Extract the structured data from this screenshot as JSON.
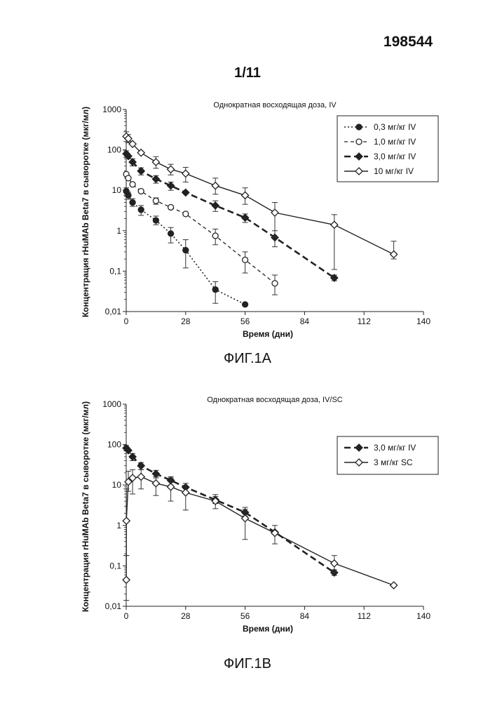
{
  "page": {
    "doc_number": "198544",
    "sheet_number": "1/11"
  },
  "figures": [
    {
      "label": "ФИГ.1A"
    },
    {
      "label": "ФИГ.1B"
    }
  ],
  "chart_data": [
    {
      "type": "line",
      "title": "Однократная восходящая доза, IV",
      "xlabel": "Время (дни)",
      "ylabel": "Концентрация rHuMAb Beta7 в сыворотке (мкг/мл)",
      "xlim": [
        0,
        140
      ],
      "xticks": [
        0,
        28,
        56,
        84,
        112,
        140
      ],
      "xtick_labels": [
        "0",
        "28",
        "56",
        "84",
        "112",
        "140"
      ],
      "ylim": [
        0.01,
        1000
      ],
      "yscale": "log",
      "yticks": [
        0.01,
        0.1,
        1,
        10,
        100,
        1000
      ],
      "ytick_labels": [
        "0,01",
        "0,1",
        "1",
        "10",
        "100",
        "1000"
      ],
      "grid": false,
      "legend_position": "top-right",
      "series": [
        {
          "name": "0,3  мг/кг  IV",
          "marker": "filled-circle",
          "line_style": "dotted",
          "points": [
            {
              "x": 0.04,
              "y": 9.5
            },
            {
              "x": 1,
              "y": 7.5
            },
            {
              "x": 3,
              "y": 5.0
            },
            {
              "x": 7,
              "y": 3.3
            },
            {
              "x": 14,
              "y": 1.8
            },
            {
              "x": 21,
              "y": 0.85
            },
            {
              "x": 28,
              "y": 0.33
            },
            {
              "x": 42,
              "y": 0.035
            },
            {
              "x": 56,
              "y": 0.015
            }
          ],
          "error_bars": [
            {
              "x": 0.04,
              "lower": 7.5,
              "upper": 11.5
            },
            {
              "x": 1,
              "lower": 6.0,
              "upper": 9.0
            },
            {
              "x": 3,
              "lower": 4.0,
              "upper": 6.2
            },
            {
              "x": 7,
              "lower": 2.4,
              "upper": 4.2
            },
            {
              "x": 14,
              "lower": 1.4,
              "upper": 2.3
            },
            {
              "x": 21,
              "lower": 0.5,
              "upper": 1.2
            },
            {
              "x": 28,
              "lower": 0.12,
              "upper": 0.6
            },
            {
              "x": 42,
              "lower": 0.016,
              "upper": 0.055
            }
          ]
        },
        {
          "name": "1,0  мг/кг  IV",
          "marker": "open-circle",
          "line_style": "dashed",
          "points": [
            {
              "x": 0.04,
              "y": 25
            },
            {
              "x": 1,
              "y": 20
            },
            {
              "x": 3,
              "y": 14
            },
            {
              "x": 7,
              "y": 9.5
            },
            {
              "x": 14,
              "y": 5.5
            },
            {
              "x": 21,
              "y": 3.8
            },
            {
              "x": 28,
              "y": 2.6
            },
            {
              "x": 42,
              "y": 0.75
            },
            {
              "x": 56,
              "y": 0.19
            },
            {
              "x": 70,
              "y": 0.05
            }
          ],
          "error_bars": [
            {
              "x": 14,
              "lower": 4.5,
              "upper": 6.5
            },
            {
              "x": 42,
              "lower": 0.45,
              "upper": 1.1
            },
            {
              "x": 56,
              "lower": 0.09,
              "upper": 0.3
            },
            {
              "x": 70,
              "lower": 0.026,
              "upper": 0.08
            }
          ]
        },
        {
          "name": "3,0  мг/кг  IV",
          "marker": "filled-diamond",
          "line_style": "bold-dashed",
          "points": [
            {
              "x": 0.04,
              "y": 80
            },
            {
              "x": 1,
              "y": 70
            },
            {
              "x": 3,
              "y": 50
            },
            {
              "x": 7,
              "y": 30
            },
            {
              "x": 14,
              "y": 19
            },
            {
              "x": 21,
              "y": 13
            },
            {
              "x": 28,
              "y": 8.8
            },
            {
              "x": 42,
              "y": 4.2
            },
            {
              "x": 56,
              "y": 2.1
            },
            {
              "x": 70,
              "y": 0.68
            },
            {
              "x": 98,
              "y": 0.068
            }
          ],
          "error_bars": [
            {
              "x": 0.04,
              "lower": 65,
              "upper": 95
            },
            {
              "x": 3,
              "lower": 40,
              "upper": 60
            },
            {
              "x": 7,
              "lower": 24,
              "upper": 36
            },
            {
              "x": 14,
              "lower": 15,
              "upper": 23
            },
            {
              "x": 21,
              "lower": 10,
              "upper": 16
            },
            {
              "x": 42,
              "lower": 3.0,
              "upper": 5.5
            },
            {
              "x": 56,
              "lower": 1.6,
              "upper": 2.6
            },
            {
              "x": 70,
              "lower": 0.4,
              "upper": 1.0
            },
            {
              "x": 98,
              "lower": 0.058,
              "upper": 0.08
            }
          ]
        },
        {
          "name": "10  мг/кг  IV",
          "marker": "open-diamond",
          "line_style": "solid",
          "points": [
            {
              "x": 0.04,
              "y": 215
            },
            {
              "x": 1,
              "y": 190
            },
            {
              "x": 3,
              "y": 140
            },
            {
              "x": 7,
              "y": 85
            },
            {
              "x": 14,
              "y": 50
            },
            {
              "x": 21,
              "y": 33
            },
            {
              "x": 28,
              "y": 26
            },
            {
              "x": 42,
              "y": 13
            },
            {
              "x": 56,
              "y": 7.5
            },
            {
              "x": 70,
              "y": 2.8
            },
            {
              "x": 98,
              "y": 1.4
            },
            {
              "x": 126,
              "y": 0.26
            }
          ],
          "error_bars": [
            {
              "x": 0.04,
              "lower": 160,
              "upper": 280
            },
            {
              "x": 1,
              "lower": 150,
              "upper": 240
            },
            {
              "x": 14,
              "lower": 35,
              "upper": 68
            },
            {
              "x": 21,
              "lower": 24,
              "upper": 44
            },
            {
              "x": 28,
              "lower": 16,
              "upper": 37
            },
            {
              "x": 42,
              "lower": 8,
              "upper": 20
            },
            {
              "x": 56,
              "lower": 4.5,
              "upper": 11.5
            },
            {
              "x": 70,
              "lower": 0.7,
              "upper": 5.0
            },
            {
              "x": 98,
              "lower": 0.11,
              "upper": 2.5
            },
            {
              "x": 126,
              "lower": 0.2,
              "upper": 0.55
            }
          ]
        }
      ]
    },
    {
      "type": "line",
      "title": "Однократная восходящая доза, IV/SC",
      "xlabel": "Время (дни)",
      "ylabel": "Концентрация rHuMAb Beta7 в сыворотке (мкг/мл)",
      "xlim": [
        0,
        140
      ],
      "xticks": [
        0,
        28,
        56,
        84,
        112,
        140
      ],
      "xtick_labels": [
        "0",
        "28",
        "56",
        "84",
        "112",
        "140"
      ],
      "ylim": [
        0.01,
        1000
      ],
      "yscale": "log",
      "yticks": [
        0.01,
        0.1,
        1,
        10,
        100,
        1000
      ],
      "ytick_labels": [
        "0,01",
        "0,1",
        "1",
        "10",
        "100",
        "1000"
      ],
      "grid": false,
      "legend_position": "top-right",
      "series": [
        {
          "name": "3,0  мг/кг  IV",
          "marker": "filled-diamond",
          "line_style": "bold-dashed",
          "points": [
            {
              "x": 0.04,
              "y": 82
            },
            {
              "x": 1,
              "y": 72
            },
            {
              "x": 3,
              "y": 50
            },
            {
              "x": 7,
              "y": 30
            },
            {
              "x": 14,
              "y": 19
            },
            {
              "x": 21,
              "y": 13
            },
            {
              "x": 28,
              "y": 8.8
            },
            {
              "x": 42,
              "y": 4.3
            },
            {
              "x": 56,
              "y": 2.1
            },
            {
              "x": 70,
              "y": 0.68
            },
            {
              "x": 98,
              "y": 0.068
            }
          ],
          "error_bars": [
            {
              "x": 0.04,
              "lower": 70,
              "upper": 95
            },
            {
              "x": 3,
              "lower": 40,
              "upper": 60
            },
            {
              "x": 7,
              "lower": 24,
              "upper": 36
            },
            {
              "x": 14,
              "lower": 15,
              "upper": 23
            },
            {
              "x": 21,
              "lower": 10,
              "upper": 16
            },
            {
              "x": 42,
              "lower": 3.5,
              "upper": 5.2
            },
            {
              "x": 56,
              "lower": 1.7,
              "upper": 2.8
            },
            {
              "x": 98,
              "lower": 0.058,
              "upper": 0.08
            }
          ]
        },
        {
          "name": "3  мг/кг  SC",
          "marker": "open-diamond",
          "line_style": "solid",
          "points": [
            {
              "x": 0.04,
              "y": 0.045
            },
            {
              "x": 0.08,
              "y": 1.3
            },
            {
              "x": 1,
              "y": 12
            },
            {
              "x": 3,
              "y": 15
            },
            {
              "x": 7,
              "y": 16
            },
            {
              "x": 14,
              "y": 11
            },
            {
              "x": 21,
              "y": 9
            },
            {
              "x": 28,
              "y": 6.5
            },
            {
              "x": 42,
              "y": 4.0
            },
            {
              "x": 56,
              "y": 1.5
            },
            {
              "x": 70,
              "y": 0.65
            },
            {
              "x": 98,
              "y": 0.115
            },
            {
              "x": 126,
              "y": 0.033
            }
          ],
          "error_bars": [
            {
              "x": 0.04,
              "lower": 0.014,
              "upper": 0.18
            },
            {
              "x": 0.08,
              "lower": 0.18,
              "upper": 8
            },
            {
              "x": 1,
              "lower": 7,
              "upper": 22
            },
            {
              "x": 3,
              "lower": 6,
              "upper": 24
            },
            {
              "x": 7,
              "lower": 8,
              "upper": 24
            },
            {
              "x": 14,
              "lower": 5.5,
              "upper": 16
            },
            {
              "x": 21,
              "lower": 4.0,
              "upper": 15
            },
            {
              "x": 28,
              "lower": 2.4,
              "upper": 11
            },
            {
              "x": 42,
              "lower": 2.6,
              "upper": 5.8
            },
            {
              "x": 56,
              "lower": 0.45,
              "upper": 2.5
            },
            {
              "x": 70,
              "lower": 0.35,
              "upper": 1.0
            },
            {
              "x": 98,
              "lower": 0.07,
              "upper": 0.18
            }
          ]
        }
      ]
    }
  ]
}
